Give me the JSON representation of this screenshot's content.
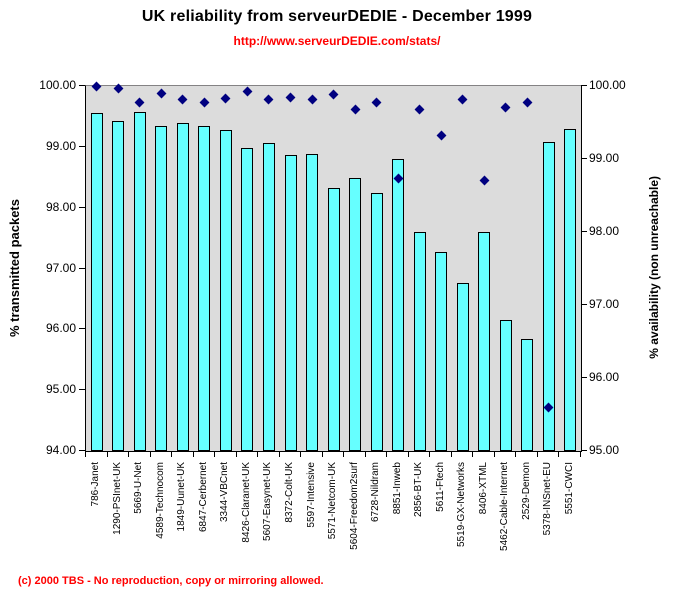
{
  "title": "UK reliability from serveurDEDIE - December 1999",
  "subtitle": "http://www.serveurDEDIE.com/stats/",
  "footer": "(c) 2000 TBS - No reproduction, copy or mirroring allowed.",
  "colors": {
    "bar_fill": "#66FFFF",
    "bar_border": "#000000",
    "marker": "#000080",
    "plot_background": "#DCDCDC",
    "top_gridline": "#848284",
    "accent_red": "#FF0000",
    "text": "#000000"
  },
  "chart_data": {
    "type": "bar",
    "title": "UK reliability from serveurDEDIE - December 1999",
    "subtitle": "http://www.serveurDEDIE.com/stats/",
    "legend": "none",
    "grid": "top-line-only",
    "categories": [
      "786-Janet",
      "1290-PSInet-UK",
      "5669-U-Net",
      "4589-Technocom",
      "1849-Uunet-UK",
      "6847-Cerbernet",
      "3344-VBCnet",
      "8426-Claranet-UK",
      "5607-Easynet-UK",
      "8372-Colt-UK",
      "5597-Intensive",
      "5571-Netcom-UK",
      "5604-Freedom2surf",
      "6728-Nildram",
      "8851-Inweb",
      "2856-BT-UK",
      "5611-Ftech",
      "5519-GX-Networks",
      "8406-XTML",
      "5462-Cable-Internet",
      "2529-Demon",
      "5378-INSnet-EU",
      "5551-CWCI"
    ],
    "series": [
      {
        "name": "% transmitted packets",
        "type": "bar",
        "yaxis": "left",
        "color": "#66FFFF",
        "values": [
          99.55,
          99.42,
          99.57,
          99.35,
          99.39,
          99.35,
          99.27,
          98.98,
          99.07,
          98.87,
          98.88,
          98.33,
          98.49,
          98.25,
          98.8,
          97.6,
          97.28,
          96.76,
          97.6,
          96.15,
          95.84,
          99.08,
          99.3
        ]
      },
      {
        "name": "% availability (non unreachable)",
        "type": "scatter",
        "marker": "diamond",
        "yaxis": "right",
        "color": "#000080",
        "values": [
          100.0,
          99.96,
          99.78,
          99.9,
          99.81,
          99.78,
          99.83,
          99.92,
          99.81,
          99.85,
          99.81,
          99.89,
          99.68,
          99.77,
          98.74,
          99.68,
          99.32,
          99.81,
          98.71,
          99.71,
          99.77,
          95.6,
          null
        ]
      }
    ],
    "left_axis": {
      "label": "% transmitted packets",
      "min": 94,
      "max": 100,
      "tick_step": 1,
      "ticks": [
        "100.00",
        "99.00",
        "98.00",
        "97.00",
        "96.00",
        "95.00",
        "94.00"
      ]
    },
    "right_axis": {
      "label": "% availability (non unreachable)",
      "min": 95,
      "max": 100,
      "tick_step": 1,
      "ticks": [
        "100.00",
        "99.00",
        "98.00",
        "97.00",
        "96.00",
        "95.00"
      ]
    }
  }
}
